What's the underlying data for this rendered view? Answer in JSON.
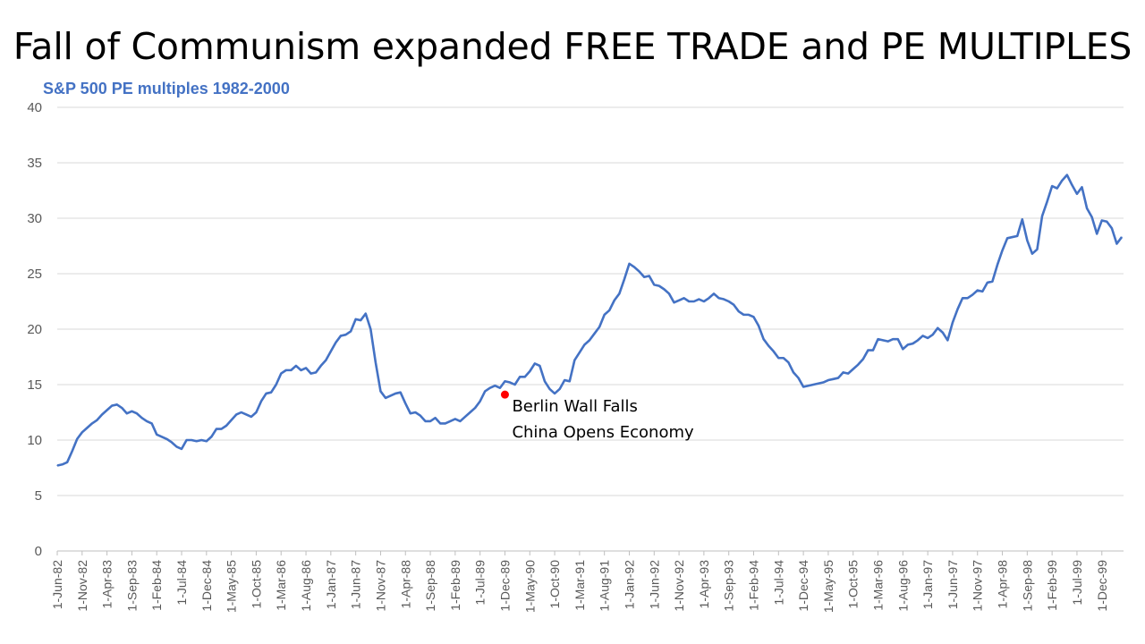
{
  "title": "Fall of Communism expanded FREE TRADE and PE MULTIPLES",
  "subtitle": "S&P 500 PE multiples 1982-2000",
  "chart_data": {
    "type": "line",
    "ylim": [
      0,
      40
    ],
    "yticks": [
      0,
      5,
      10,
      15,
      20,
      25,
      30,
      35,
      40
    ],
    "grid": true,
    "line_color": "#4472c4",
    "x_tick_labels": [
      "1-Jun-82",
      "1-Nov-82",
      "1-Apr-83",
      "1-Sep-83",
      "1-Feb-84",
      "1-Jul-84",
      "1-Dec-84",
      "1-May-85",
      "1-Oct-85",
      "1-Mar-86",
      "1-Aug-86",
      "1-Jan-87",
      "1-Jun-87",
      "1-Nov-87",
      "1-Apr-88",
      "1-Sep-88",
      "1-Feb-89",
      "1-Jul-89",
      "1-Dec-89",
      "1-May-90",
      "1-Oct-90",
      "1-Mar-91",
      "1-Aug-91",
      "1-Jan-92",
      "1-Jun-92",
      "1-Nov-92",
      "1-Apr-93",
      "1-Sep-93",
      "1-Feb-94",
      "1-Jul-94",
      "1-Dec-94",
      "1-May-95",
      "1-Oct-95",
      "1-Mar-96",
      "1-Aug-96",
      "1-Jan-97",
      "1-Jun-97",
      "1-Nov-97",
      "1-Apr-98",
      "1-Sep-98",
      "1-Feb-99",
      "1-Jul-99",
      "1-Dec-99"
    ],
    "series": [
      {
        "values": [
          7.7,
          7.8,
          8.0,
          9.0,
          10.1,
          10.7,
          11.1,
          11.5,
          11.8,
          12.3,
          12.7,
          13.1,
          13.2,
          12.9,
          12.4,
          12.6,
          12.4,
          12.0,
          11.7,
          11.5,
          10.5,
          10.3,
          10.1,
          9.8,
          9.4,
          9.2,
          10.0,
          10.0,
          9.9,
          10.0,
          9.9,
          10.3,
          11.0,
          11.0,
          11.3,
          11.8,
          12.3,
          12.5,
          12.3,
          12.1,
          12.5,
          13.5,
          14.2,
          14.3,
          15.0,
          16.0,
          16.3,
          16.3,
          16.7,
          16.3,
          16.5,
          16.0,
          16.1,
          16.7,
          17.2,
          18.0,
          18.8,
          19.4,
          19.5,
          19.8,
          20.9,
          20.8,
          21.4,
          20.0,
          17.0,
          14.4,
          13.8,
          14.0,
          14.2,
          14.3,
          13.3,
          12.4,
          12.5,
          12.2,
          11.7,
          11.7,
          12.0,
          11.5,
          11.5,
          11.7,
          11.9,
          11.7,
          12.1,
          12.5,
          12.9,
          13.5,
          14.4,
          14.7,
          14.9,
          14.7,
          15.3,
          15.2,
          15.0,
          15.7,
          15.7,
          16.2,
          16.9,
          16.7,
          15.3,
          14.6,
          14.2,
          14.6,
          15.4,
          15.3,
          17.2,
          17.9,
          18.6,
          19.0,
          19.6,
          20.2,
          21.3,
          21.7,
          22.6,
          23.2,
          24.5,
          25.9,
          25.6,
          25.2,
          24.7,
          24.8,
          24.0,
          23.9,
          23.6,
          23.2,
          22.4,
          22.6,
          22.8,
          22.5,
          22.5,
          22.7,
          22.5,
          22.8,
          23.2,
          22.8,
          22.7,
          22.5,
          22.2,
          21.6,
          21.3,
          21.3,
          21.1,
          20.3,
          19.1,
          18.5,
          18.0,
          17.4,
          17.4,
          17.0,
          16.1,
          15.6,
          14.8,
          14.9,
          15.0,
          15.1,
          15.2,
          15.4,
          15.5,
          15.6,
          16.1,
          16.0,
          16.4,
          16.8,
          17.3,
          18.1,
          18.1,
          19.1,
          19.0,
          18.9,
          19.1,
          19.1,
          18.2,
          18.6,
          18.7,
          19.0,
          19.4,
          19.2,
          19.5,
          20.1,
          19.7,
          19.0,
          20.6,
          21.8,
          22.8,
          22.8,
          23.1,
          23.5,
          23.4,
          24.2,
          24.3,
          25.8,
          27.1,
          28.2,
          28.3,
          28.4,
          29.9,
          28.0,
          26.8,
          27.2,
          30.2,
          31.5,
          32.9,
          32.7,
          33.4,
          33.9,
          33.0,
          32.2,
          32.8,
          30.9,
          30.1,
          28.6,
          29.8,
          29.7,
          29.1,
          27.7,
          28.3
        ]
      }
    ],
    "annotation": {
      "marker_x_index": 90,
      "marker_y": 14.1,
      "marker_color": "#ff0000",
      "lines": [
        "Berlin Wall Falls",
        "China Opens Economy"
      ]
    }
  }
}
